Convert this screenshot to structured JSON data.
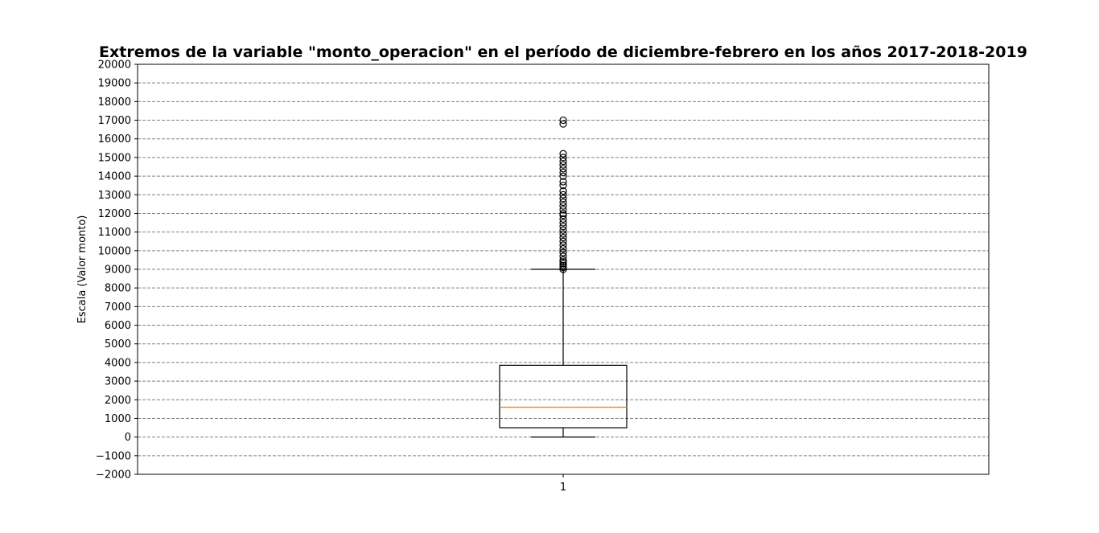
{
  "chart_data": {
    "type": "box",
    "title": "Extremos de la variable \"monto_operacion\" en el período de diciembre-febrero en los años 2017-2018-2019",
    "ylabel": "Escala (Valor monto)",
    "xlabel": "",
    "ylim": [
      -2000,
      20000
    ],
    "yticks": [
      -2000,
      -1000,
      0,
      1000,
      2000,
      3000,
      4000,
      5000,
      6000,
      7000,
      8000,
      9000,
      10000,
      11000,
      12000,
      13000,
      14000,
      15000,
      16000,
      17000,
      18000,
      19000,
      20000
    ],
    "ytick_labels": [
      "−2000",
      "−1000",
      "0",
      "1000",
      "2000",
      "3000",
      "4000",
      "5000",
      "6000",
      "7000",
      "8000",
      "9000",
      "10000",
      "11000",
      "12000",
      "13000",
      "14000",
      "15000",
      "16000",
      "17000",
      "18000",
      "19000",
      "20000"
    ],
    "categories": [
      "1"
    ],
    "grid": true,
    "boxes": [
      {
        "category": "1",
        "whisker_low": 0,
        "q1": 500,
        "median": 1600,
        "q3": 3850,
        "whisker_high": 9000,
        "outliers": [
          9000,
          9100,
          9200,
          9300,
          9400,
          9500,
          9700,
          9900,
          10100,
          10300,
          10500,
          10700,
          10900,
          11100,
          11300,
          11500,
          11700,
          11900,
          12000,
          12200,
          12400,
          12600,
          12800,
          13000,
          13200,
          13500,
          13700,
          14000,
          14200,
          14400,
          14600,
          14800,
          15000,
          15200,
          16800,
          17000
        ]
      }
    ],
    "colors": {
      "box": "#000000",
      "median": "#ff7f0e",
      "grid": "#808080",
      "outlier": "#000000"
    }
  }
}
